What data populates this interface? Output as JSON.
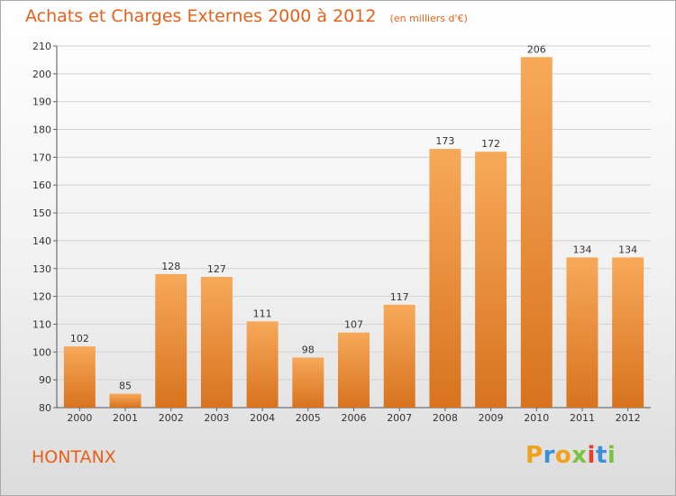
{
  "header": {
    "title": "Achats et Charges Externes 2000 à 2012",
    "subtitle": "(en milliers d'€)"
  },
  "place_name": "HONTANX",
  "logo": {
    "letters": [
      "P",
      "r",
      "o",
      "x",
      "i",
      "t",
      "i"
    ],
    "colors": [
      "#f0a21b",
      "#3a8fd8",
      "#f0a21b",
      "#7cc242",
      "#e83e2c",
      "#3a8fd8",
      "#7cc242"
    ]
  },
  "colors": {
    "accent": "#e8611a",
    "bar_light": "#f7a95a",
    "bar_dark": "#d8731e"
  },
  "chart_data": {
    "type": "bar",
    "title": "Achats et Charges Externes 2000 à 2012",
    "subtitle": "(en milliers d'€)",
    "categories": [
      "2000",
      "2001",
      "2002",
      "2003",
      "2004",
      "2005",
      "2006",
      "2007",
      "2008",
      "2009",
      "2010",
      "2011",
      "2012"
    ],
    "values": [
      102,
      85,
      128,
      127,
      111,
      98,
      107,
      117,
      173,
      172,
      206,
      134,
      134
    ],
    "ylim": [
      80,
      210
    ],
    "yticks": [
      80,
      90,
      100,
      110,
      120,
      130,
      140,
      150,
      160,
      170,
      180,
      190,
      200,
      210
    ],
    "grid": true
  }
}
